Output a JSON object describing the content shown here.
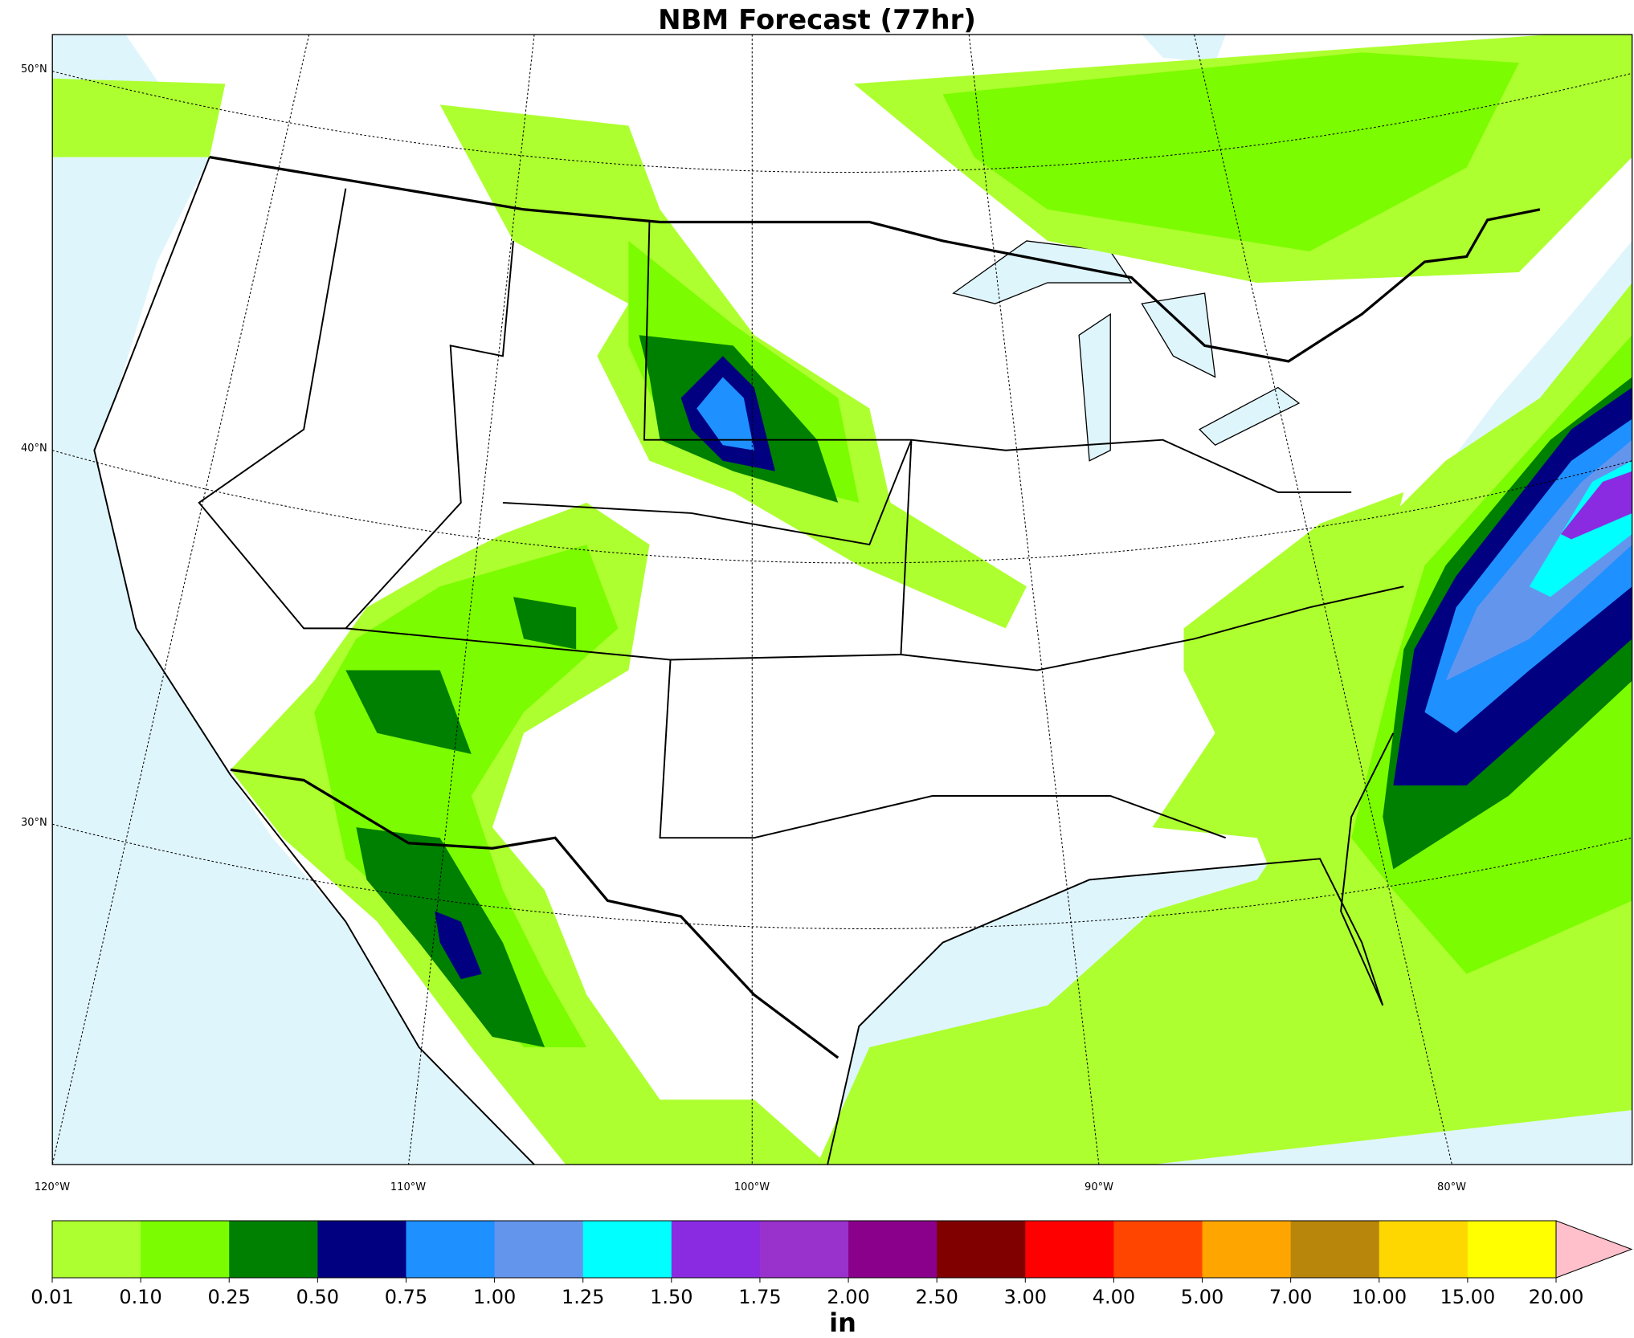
{
  "header": {
    "title": "NBM Forecast (77hr)"
  },
  "map": {
    "lat_labels": [
      "50°N",
      "40°N",
      "30°N"
    ],
    "lon_labels": [
      "120°W",
      "110°W",
      "100°W",
      "90°W",
      "80°W"
    ]
  },
  "colorbar": {
    "labels": [
      "0.01",
      "0.10",
      "0.25",
      "0.50",
      "0.75",
      "1.00",
      "1.25",
      "1.50",
      "1.75",
      "2.00",
      "2.50",
      "3.00",
      "4.00",
      "5.00",
      "7.00",
      "10.00",
      "15.00",
      "20.00"
    ],
    "colors": [
      "#adff2f",
      "#7cfc00",
      "#008000",
      "#000080",
      "#1e90ff",
      "#6495ed",
      "#00ffff",
      "#8a2be2",
      "#9932cc",
      "#8b008b",
      "#800000",
      "#ff0000",
      "#ff4500",
      "#ffa500",
      "#b8860b",
      "#ffd700",
      "#ffff00"
    ],
    "extend_color": "#ffc0cb",
    "unit": "in"
  }
}
